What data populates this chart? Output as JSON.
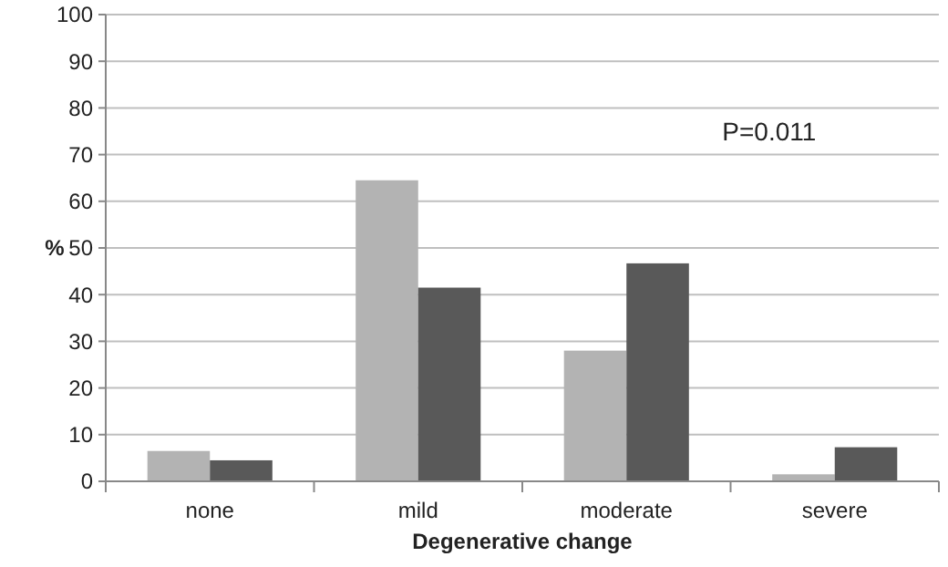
{
  "chart_data": {
    "type": "bar",
    "categories": [
      "none",
      "mild",
      "moderate",
      "severe"
    ],
    "series": [
      {
        "color": "#b3b3b3",
        "values": [
          6.5,
          64.5,
          28,
          1.5
        ]
      },
      {
        "color": "#595959",
        "values": [
          4.5,
          41.5,
          46.7,
          7.3
        ]
      }
    ],
    "xlabel": "Degenerative change",
    "ylabel": "%",
    "ylim": [
      0,
      100
    ],
    "yticks": [
      0,
      10,
      20,
      30,
      40,
      50,
      60,
      70,
      80,
      90,
      100
    ],
    "grid": "y",
    "annotations": [
      "P=0.011"
    ]
  }
}
